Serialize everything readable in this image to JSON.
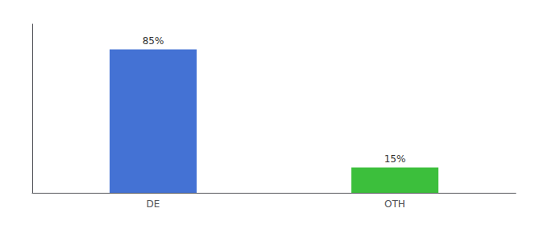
{
  "chart_data": {
    "type": "bar",
    "categories": [
      "DE",
      "OTH"
    ],
    "values": [
      85,
      15
    ],
    "value_labels": [
      "85%",
      "15%"
    ],
    "colors": [
      "#4472d4",
      "#3cbf3c"
    ],
    "ylim": [
      0,
      100
    ],
    "grid": false,
    "data_labels": true,
    "tick_labels": "x"
  }
}
